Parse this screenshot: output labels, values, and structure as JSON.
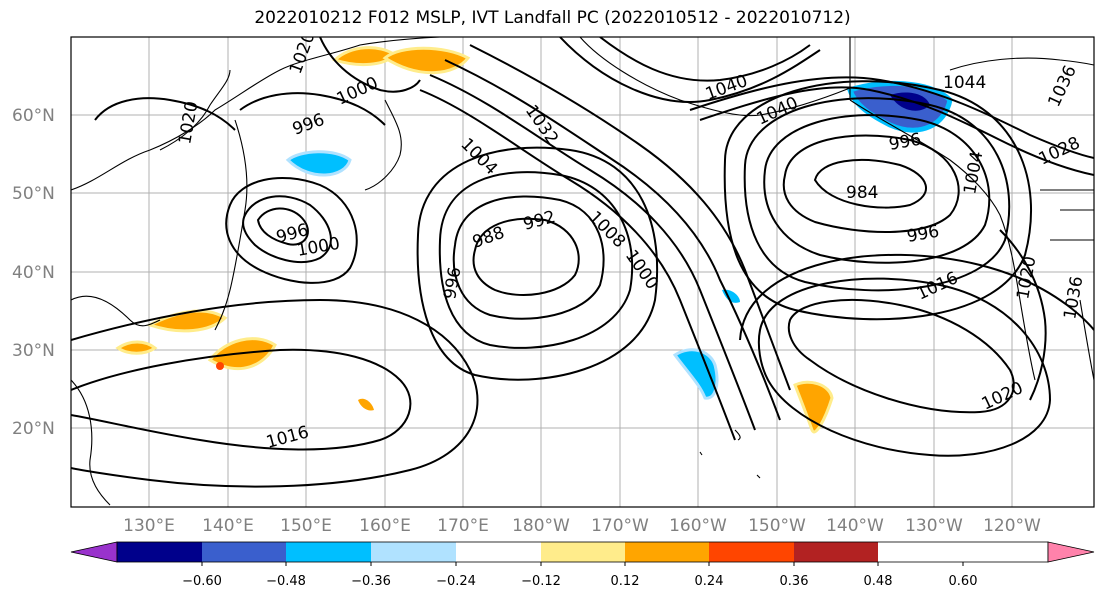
{
  "title": "2022010212 F012 MSLP, IVT Landfall PC (2022010512 - 2022010712)",
  "lat_labels": [
    "60°N",
    "50°N",
    "40°N",
    "30°N",
    "20°N"
  ],
  "lon_labels": [
    "130°E",
    "140°E",
    "150°E",
    "160°E",
    "170°E",
    "180°W",
    "170°W",
    "160°W",
    "150°W",
    "140°W",
    "130°W",
    "120°W"
  ],
  "colorbar": {
    "colors": [
      "#9932cc",
      "#00008b",
      "#3a5fcd",
      "#00bfff",
      "#b0e2ff",
      "#ffffff",
      "#ffec8b",
      "#ffa500",
      "#ff4500",
      "#b22222",
      "#ff82ab"
    ],
    "tick_labels": [
      "-0.60",
      "-0.48",
      "-0.36",
      "-0.24",
      "-0.12",
      "0.12",
      "0.24",
      "0.36",
      "0.48",
      "0.60"
    ]
  },
  "contour_labels": [
    "1020",
    "1000",
    "996",
    "1020",
    "1040",
    "1032",
    "1004",
    "1008",
    "1000",
    "992",
    "988",
    "996",
    "996",
    "1000",
    "1040",
    "1004",
    "996",
    "984",
    "996",
    "1016",
    "1020",
    "1016",
    "1044",
    "1036",
    "1028",
    "1020",
    "1036"
  ]
}
